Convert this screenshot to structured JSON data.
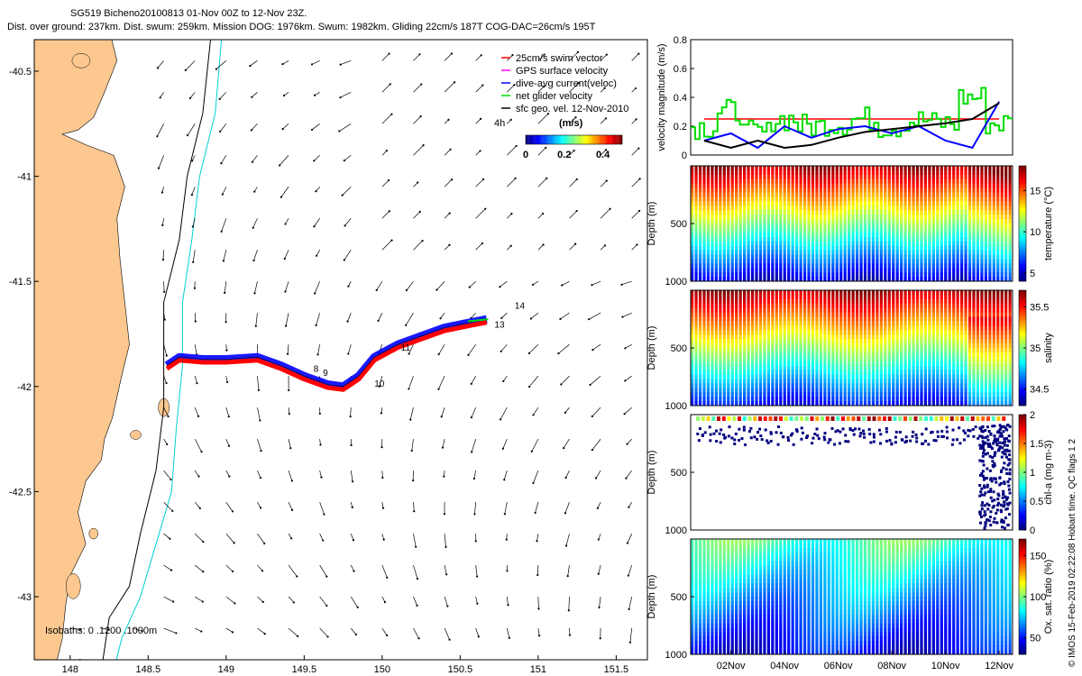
{
  "header": {
    "line1": "SG519 Bicheno20100813 01-Nov 00Z to 12-Nov 23Z.",
    "line2": "Dist. over ground: 237km. Dist. swum: 259km. Mission DOG: 1976km. Swum: 1982km. Gliding 22cm/s 187T COG-DAC=26cm/s 195T"
  },
  "map": {
    "x_ticks": [
      "148",
      "148.5",
      "149",
      "149.5",
      "150",
      "150.5",
      "151",
      "151.5"
    ],
    "x_tick_values": [
      148,
      148.5,
      149,
      149.5,
      150,
      150.5,
      151,
      151.5
    ],
    "y_ticks": [
      "-40.5",
      "-41",
      "-41.5",
      "-42",
      "-42.5",
      "-43"
    ],
    "y_tick_values": [
      -40.5,
      -41,
      -41.5,
      -42,
      -42.5,
      -43
    ],
    "xlim": [
      147.77,
      151.7
    ],
    "ylim": [
      -43.3,
      -40.35
    ],
    "bathymetry_label": "Isobaths: 0 .1200 .1000m",
    "legend": {
      "items": [
        {
          "label": "25cm/s swim vector",
          "color": "#ff0000"
        },
        {
          "label": "GPS surface velocity",
          "color": "#ff00ff"
        },
        {
          "label": "dive-avg current(veloc)",
          "color": "#0000ff"
        },
        {
          "label": "net glider velocity",
          "color": "#00dd00"
        },
        {
          "label": "sfc geo. vel. 12-Nov-2010",
          "color": "#000000"
        }
      ],
      "time_label": "4h",
      "colorbar_title": "(m/s)",
      "colorbar_ticks": [
        "0",
        "0.2",
        "0.4"
      ]
    },
    "track_day_labels": [
      "8",
      "9",
      "10",
      "11",
      "13",
      "14"
    ],
    "colors": {
      "land": "#fcc890",
      "isobath_200": "#000000",
      "isobath_1000": "#00d0d0"
    }
  },
  "chart_data": [
    {
      "type": "line",
      "title": "",
      "ylabel": "velocity magnitude (m/s)",
      "ylim": [
        0,
        0.8
      ],
      "y_ticks": [
        "0",
        "0.2",
        "0.4",
        "0.6",
        "0.8"
      ],
      "x_days": [
        1,
        2,
        3,
        4,
        5,
        6,
        7,
        8,
        9,
        10,
        11,
        12
      ],
      "series": [
        {
          "name": "swim speed reference",
          "color": "#ff0000",
          "values": [
            0.25,
            0.25,
            0.25,
            0.25,
            0.25,
            0.25,
            0.25,
            0.25,
            0.25,
            0.25,
            0.25,
            0.25
          ]
        },
        {
          "name": "net glider velocity",
          "color": "#00dd00",
          "values": [
            0.2,
            0.3,
            0.15,
            0.25,
            0.2,
            0.22,
            0.25,
            0.2,
            0.24,
            0.22,
            0.4,
            0.22
          ]
        },
        {
          "name": "dive-avg current",
          "color": "#0000ff",
          "values": [
            0.1,
            0.15,
            0.05,
            0.2,
            0.12,
            0.18,
            0.2,
            0.15,
            0.2,
            0.1,
            0.05,
            0.37
          ]
        },
        {
          "name": "surface geostrophic velocity",
          "color": "#000000",
          "values": [
            0.1,
            0.05,
            0.1,
            0.05,
            0.07,
            0.12,
            0.16,
            0.18,
            0.2,
            0.22,
            0.25,
            0.36
          ]
        }
      ]
    },
    {
      "type": "heatmap",
      "ylabel": "Depth (m)",
      "y_ticks": [
        "500",
        "1000"
      ],
      "ylim": [
        1000,
        0
      ],
      "colorbar_label": "temperature (°C)",
      "colorbar_ticks": [
        "5",
        "10",
        "15"
      ],
      "clim": [
        4,
        18
      ]
    },
    {
      "type": "heatmap",
      "ylabel": "Depth (m)",
      "y_ticks": [
        "500",
        "1000"
      ],
      "ylim": [
        1000,
        0
      ],
      "colorbar_label": "salinity",
      "colorbar_ticks": [
        "34.5",
        "35",
        "35.5"
      ],
      "clim": [
        34.3,
        35.7
      ]
    },
    {
      "type": "scatter",
      "ylabel": "Depth (m)",
      "y_ticks": [
        "500",
        "1000"
      ],
      "ylim": [
        1000,
        0
      ],
      "colorbar_label": "chl-a (mg m-3)",
      "colorbar_ticks": [
        "0",
        "0.5",
        "1",
        "1.5",
        "2"
      ],
      "clim": [
        0,
        2
      ]
    },
    {
      "type": "heatmap",
      "ylabel": "Depth (m)",
      "y_ticks": [
        "500",
        "1000"
      ],
      "ylim": [
        1000,
        0
      ],
      "colorbar_label": "Ox. sat. ratio (%)",
      "colorbar_ticks": [
        "50",
        "100",
        "150"
      ],
      "clim": [
        30,
        170
      ],
      "x_tick_labels": [
        "02Nov",
        "04Nov",
        "06Nov",
        "08Nov",
        "10Nov",
        "12Nov"
      ]
    }
  ],
  "credit": "© IMOS 15-Feb-2019 02:22:08 Hobart time. QC flags 1  2"
}
